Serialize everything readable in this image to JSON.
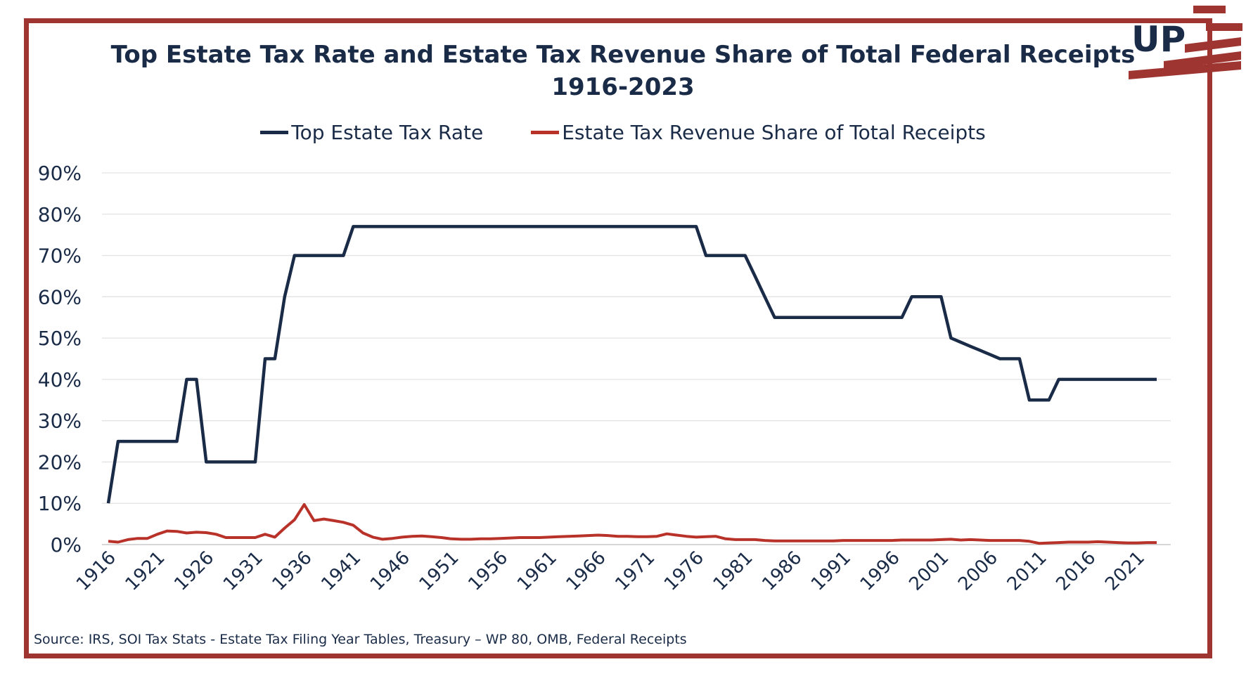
{
  "title_line1": "Top Estate Tax Rate and Estate Tax Revenue Share of Total Federal Receipts",
  "title_line2": "1916-2023",
  "logo_text": "UP",
  "source": "Source: IRS, SOI Tax Stats - Estate Tax Filing Year Tables, Treasury – WP 80, OMB, Federal Receipts",
  "colors": {
    "frame": "#9E3530",
    "rate": "#1a2b47",
    "share": "#B8322A",
    "grid": "#e3e3e3",
    "text": "#1a2b47"
  },
  "chart_data": {
    "type": "line",
    "ylim": [
      0,
      90
    ],
    "y_ticks": [
      "0%",
      "10%",
      "20%",
      "30%",
      "40%",
      "50%",
      "60%",
      "70%",
      "80%",
      "90%"
    ],
    "x_tick_labels": [
      "1916",
      "1921",
      "1926",
      "1931",
      "1936",
      "1941",
      "1946",
      "1951",
      "1956",
      "1961",
      "1966",
      "1971",
      "1976",
      "1981",
      "1986",
      "1991",
      "1996",
      "2001",
      "2006",
      "2011",
      "2016",
      "2021"
    ],
    "grid": "horizontal",
    "legend_position": "top",
    "series": [
      {
        "name": "Top Estate Tax Rate",
        "color": "#1a2b47",
        "points": [
          [
            1916,
            10
          ],
          [
            1917,
            25
          ],
          [
            1923,
            25
          ],
          [
            1924,
            40
          ],
          [
            1925,
            40
          ],
          [
            1926,
            20
          ],
          [
            1931,
            20
          ],
          [
            1932,
            45
          ],
          [
            1933,
            45
          ],
          [
            1934,
            60
          ],
          [
            1935,
            70
          ],
          [
            1940,
            70
          ],
          [
            1941,
            77
          ],
          [
            1976,
            77
          ],
          [
            1977,
            70
          ],
          [
            1981,
            70
          ],
          [
            1982,
            65
          ],
          [
            1983,
            60
          ],
          [
            1984,
            55
          ],
          [
            1997,
            55
          ],
          [
            1998,
            60
          ],
          [
            2001,
            60
          ],
          [
            2002,
            50
          ],
          [
            2003,
            49
          ],
          [
            2004,
            48
          ],
          [
            2005,
            47
          ],
          [
            2006,
            46
          ],
          [
            2007,
            45
          ],
          [
            2009,
            45
          ],
          [
            2010,
            35
          ],
          [
            2012,
            35
          ],
          [
            2013,
            40
          ],
          [
            2023,
            40
          ]
        ]
      },
      {
        "name": "Estate Tax Revenue Share of Total Receipts",
        "color": "#B8322A",
        "points": [
          [
            1916,
            0.8
          ],
          [
            1917,
            0.6
          ],
          [
            1918,
            1.2
          ],
          [
            1919,
            1.5
          ],
          [
            1920,
            1.5
          ],
          [
            1921,
            2.5
          ],
          [
            1922,
            3.3
          ],
          [
            1923,
            3.2
          ],
          [
            1924,
            2.8
          ],
          [
            1925,
            3.0
          ],
          [
            1926,
            2.9
          ],
          [
            1927,
            2.5
          ],
          [
            1928,
            1.7
          ],
          [
            1929,
            1.7
          ],
          [
            1930,
            1.7
          ],
          [
            1931,
            1.7
          ],
          [
            1932,
            2.5
          ],
          [
            1933,
            1.8
          ],
          [
            1934,
            4.0
          ],
          [
            1935,
            6.0
          ],
          [
            1936,
            9.7
          ],
          [
            1937,
            5.8
          ],
          [
            1938,
            6.2
          ],
          [
            1939,
            5.8
          ],
          [
            1940,
            5.4
          ],
          [
            1941,
            4.7
          ],
          [
            1942,
            2.8
          ],
          [
            1943,
            1.8
          ],
          [
            1944,
            1.3
          ],
          [
            1945,
            1.5
          ],
          [
            1946,
            1.8
          ],
          [
            1947,
            2.0
          ],
          [
            1948,
            2.1
          ],
          [
            1949,
            1.9
          ],
          [
            1950,
            1.7
          ],
          [
            1951,
            1.4
          ],
          [
            1952,
            1.3
          ],
          [
            1953,
            1.3
          ],
          [
            1954,
            1.4
          ],
          [
            1955,
            1.4
          ],
          [
            1956,
            1.5
          ],
          [
            1957,
            1.6
          ],
          [
            1958,
            1.7
          ],
          [
            1959,
            1.7
          ],
          [
            1960,
            1.7
          ],
          [
            1961,
            1.8
          ],
          [
            1962,
            1.9
          ],
          [
            1963,
            2.0
          ],
          [
            1964,
            2.1
          ],
          [
            1965,
            2.2
          ],
          [
            1966,
            2.3
          ],
          [
            1967,
            2.2
          ],
          [
            1968,
            2.0
          ],
          [
            1969,
            2.0
          ],
          [
            1970,
            1.9
          ],
          [
            1971,
            1.9
          ],
          [
            1972,
            2.0
          ],
          [
            1973,
            2.6
          ],
          [
            1974,
            2.3
          ],
          [
            1975,
            2.0
          ],
          [
            1976,
            1.8
          ],
          [
            1977,
            1.9
          ],
          [
            1978,
            2.0
          ],
          [
            1979,
            1.4
          ],
          [
            1980,
            1.2
          ],
          [
            1981,
            1.2
          ],
          [
            1982,
            1.2
          ],
          [
            1983,
            1.0
          ],
          [
            1984,
            0.9
          ],
          [
            1985,
            0.9
          ],
          [
            1986,
            0.9
          ],
          [
            1987,
            0.9
          ],
          [
            1988,
            0.9
          ],
          [
            1989,
            0.9
          ],
          [
            1990,
            0.9
          ],
          [
            1991,
            1.0
          ],
          [
            1992,
            1.0
          ],
          [
            1993,
            1.0
          ],
          [
            1994,
            1.0
          ],
          [
            1995,
            1.0
          ],
          [
            1996,
            1.0
          ],
          [
            1997,
            1.1
          ],
          [
            1998,
            1.1
          ],
          [
            1999,
            1.1
          ],
          [
            2000,
            1.1
          ],
          [
            2001,
            1.2
          ],
          [
            2002,
            1.3
          ],
          [
            2003,
            1.1
          ],
          [
            2004,
            1.2
          ],
          [
            2005,
            1.1
          ],
          [
            2006,
            1.0
          ],
          [
            2007,
            1.0
          ],
          [
            2008,
            1.0
          ],
          [
            2009,
            1.0
          ],
          [
            2010,
            0.8
          ],
          [
            2011,
            0.3
          ],
          [
            2012,
            0.4
          ],
          [
            2013,
            0.5
          ],
          [
            2014,
            0.6
          ],
          [
            2015,
            0.6
          ],
          [
            2016,
            0.6
          ],
          [
            2017,
            0.7
          ],
          [
            2018,
            0.6
          ],
          [
            2019,
            0.5
          ],
          [
            2020,
            0.4
          ],
          [
            2021,
            0.4
          ],
          [
            2022,
            0.5
          ],
          [
            2023,
            0.5
          ]
        ]
      }
    ]
  }
}
